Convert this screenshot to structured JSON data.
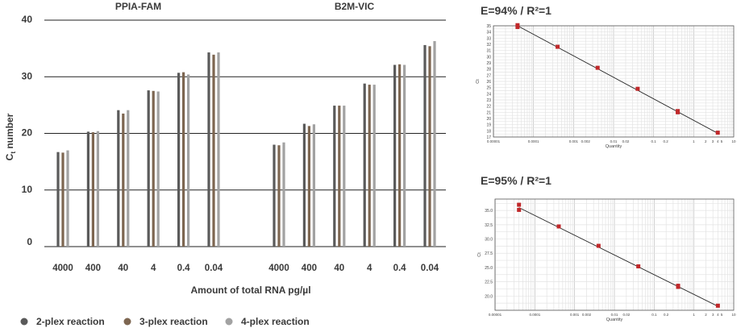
{
  "chart_data": [
    {
      "type": "bar",
      "ylabel_main": "C",
      "ylabel_sub": "t",
      "ylabel_tail": " number",
      "xlabel": "Amount of total RNA pg/µl",
      "ylim": [
        0,
        40
      ],
      "yticks": [
        0,
        10,
        20,
        30,
        40
      ],
      "legend_position": "bottom",
      "colors": [
        "#5a5a5a",
        "#7d6651",
        "#a2a2a2"
      ],
      "series_names": [
        "2-plex reaction",
        "3-plex reaction",
        "4-plex reaction"
      ],
      "groups": [
        {
          "title": "PPIA-FAM",
          "categories": [
            "4000",
            "400",
            "40",
            "4",
            "0.4",
            "0.04"
          ],
          "series": [
            {
              "name": "2-plex reaction",
              "values": [
                16.7,
                20.3,
                24.1,
                27.6,
                30.7,
                34.3
              ]
            },
            {
              "name": "3-plex reaction",
              "values": [
                16.6,
                20.2,
                23.5,
                27.5,
                30.8,
                33.9
              ]
            },
            {
              "name": "4-plex reaction",
              "values": [
                17.0,
                20.4,
                24.1,
                27.4,
                30.4,
                34.3
              ]
            }
          ]
        },
        {
          "title": "B2M-VIC",
          "categories": [
            "4000",
            "400",
            "40",
            "4",
            "0.4",
            "0.04"
          ],
          "series": [
            {
              "name": "2-plex reaction",
              "values": [
                18.0,
                21.7,
                24.9,
                28.8,
                32.1,
                35.6
              ]
            },
            {
              "name": "3-plex reaction",
              "values": [
                17.9,
                21.3,
                24.9,
                28.6,
                32.2,
                35.4
              ]
            },
            {
              "name": "4-plex reaction",
              "values": [
                18.4,
                21.6,
                24.9,
                28.6,
                32.1,
                36.3
              ]
            }
          ]
        }
      ]
    },
    {
      "type": "scatter",
      "title": "E=94% / R²=1",
      "xlabel": "Quantity",
      "ylabel": "Ct",
      "x_scale": "log",
      "xlim": [
        1e-05,
        10
      ],
      "xticks": [
        "0.00001",
        "0.0001",
        "0.001",
        "0.002",
        "0.01",
        "0.02",
        "0.1",
        "0.2",
        "1",
        "2",
        "3",
        "4",
        "5",
        "10"
      ],
      "ylim": [
        17,
        35
      ],
      "yticks": [
        17,
        18,
        19,
        20,
        21,
        22,
        23,
        24,
        25,
        26,
        27,
        28,
        29,
        30,
        31,
        32,
        33,
        34,
        35
      ],
      "grid": true,
      "point_color": "#c0282a",
      "points": [
        {
          "x": 4e-05,
          "y": 34.8
        },
        {
          "x": 4e-05,
          "y": 35.1
        },
        {
          "x": 0.0004,
          "y": 31.6
        },
        {
          "x": 0.004,
          "y": 28.2
        },
        {
          "x": 0.04,
          "y": 24.8
        },
        {
          "x": 0.4,
          "y": 21.0
        },
        {
          "x": 0.4,
          "y": 21.2
        },
        {
          "x": 4,
          "y": 17.7
        }
      ],
      "fit_line": {
        "x": [
          4e-05,
          4
        ],
        "y": [
          35.0,
          17.6
        ]
      }
    },
    {
      "type": "scatter",
      "title": "E=95% / R²=1",
      "xlabel": "Quantity",
      "ylabel": "Ct",
      "x_scale": "log",
      "xlim": [
        1e-05,
        10
      ],
      "xticks": [
        "0.00001",
        "0.0001",
        "0.001",
        "0.002",
        "0.01",
        "0.02",
        "0.1",
        "0.2",
        "1",
        "2",
        "3",
        "4",
        "5",
        "10"
      ],
      "ylim": [
        17.5,
        37
      ],
      "yticks": [
        "20.0",
        "22.5",
        "25.0",
        "27.5",
        "30.0",
        "32.5",
        "35.0"
      ],
      "grid": true,
      "point_color": "#c0282a",
      "points": [
        {
          "x": 4e-05,
          "y": 36.0
        },
        {
          "x": 4e-05,
          "y": 35.1
        },
        {
          "x": 0.0004,
          "y": 32.2
        },
        {
          "x": 0.004,
          "y": 28.8
        },
        {
          "x": 0.04,
          "y": 25.2
        },
        {
          "x": 0.4,
          "y": 21.8
        },
        {
          "x": 0.4,
          "y": 21.6
        },
        {
          "x": 4,
          "y": 18.3
        }
      ],
      "fit_line": {
        "x": [
          4e-05,
          4
        ],
        "y": [
          35.5,
          18.2
        ]
      }
    }
  ]
}
